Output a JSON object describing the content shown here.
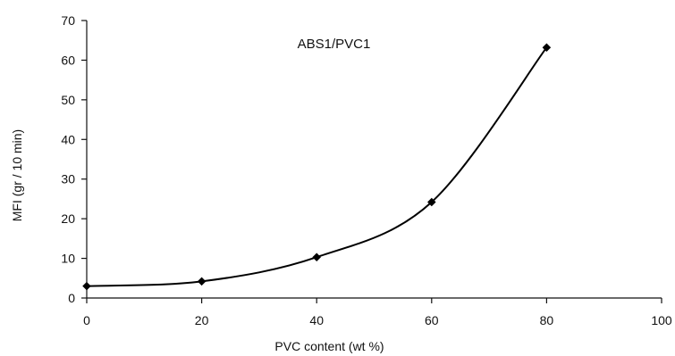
{
  "chart_data": {
    "type": "line",
    "title": "",
    "xlabel": "PVC content (wt %)",
    "ylabel": "MFI (gr / 10 min)",
    "xlim": [
      0,
      100
    ],
    "ylim": [
      0,
      70
    ],
    "x_ticks": [
      0,
      20,
      40,
      60,
      80,
      100
    ],
    "y_ticks": [
      0,
      10,
      20,
      30,
      40,
      50,
      60,
      70
    ],
    "grid": false,
    "legend": "none",
    "annotations": [
      {
        "text": "ABS1/PVC1",
        "x": 43,
        "y": 63
      }
    ],
    "series": [
      {
        "x": [
          0,
          20,
          40,
          60,
          80
        ],
        "y": [
          3,
          4.2,
          10.3,
          24.2,
          63.2
        ],
        "color": "#000000",
        "marker": "diamond"
      }
    ]
  }
}
